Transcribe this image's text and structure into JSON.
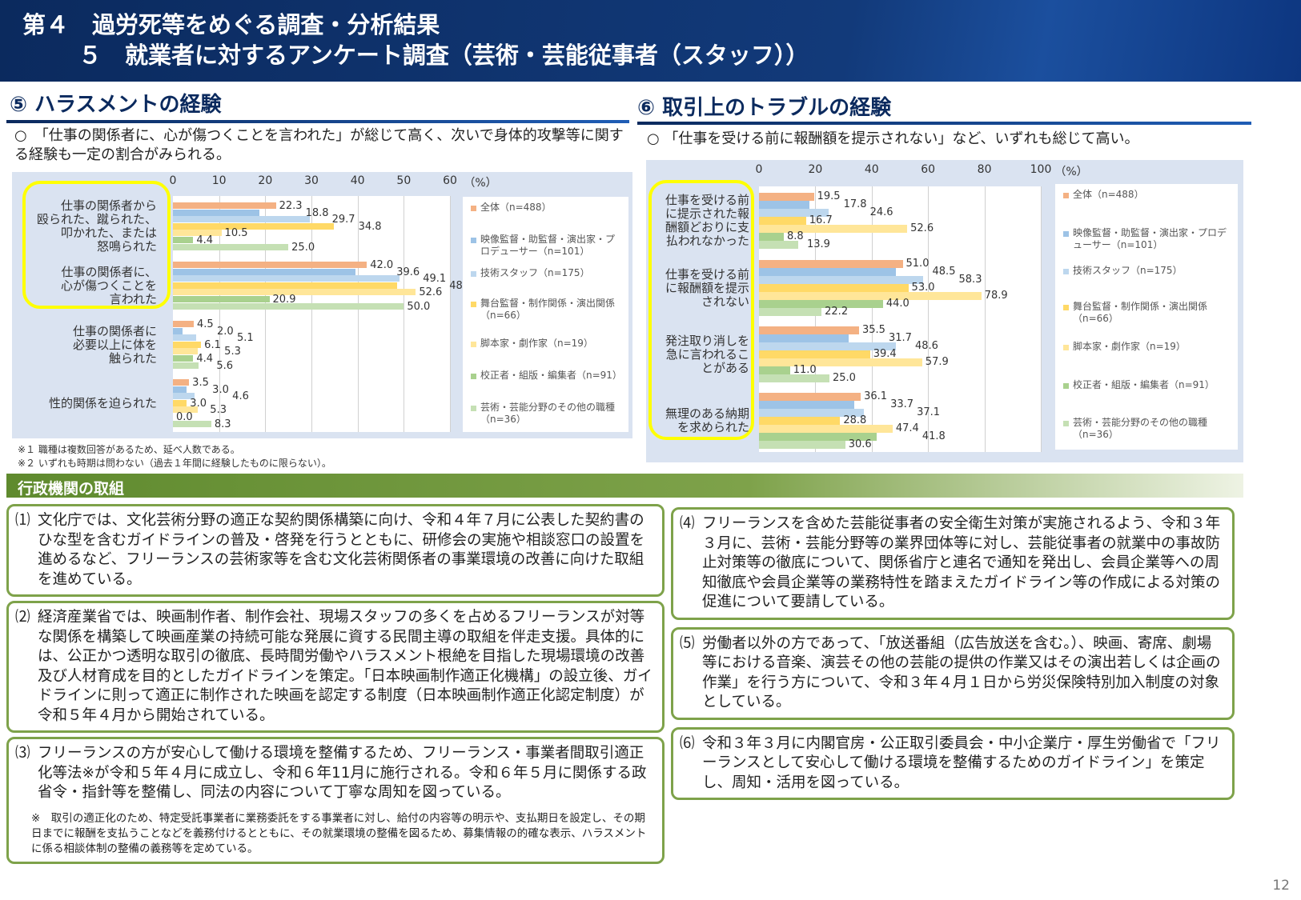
{
  "header": {
    "line1": "第４　過労死等をめぐる調査・分析結果",
    "line2": "５　就業者に対するアンケート調査（芸術・芸能従事者（スタッフ））"
  },
  "left": {
    "title": "⑤ ハラスメントの経験",
    "lead": "○　「仕事の関係者に、心が傷つくことを言われた」が総じて高く、次いで身体的攻撃等に関する経験も一定の割合がみられる。",
    "notes": [
      "※１ 職種は複数回答があるため、延べ人数である。",
      "※２ いずれも時期は問わない（過去１年間に経験したものに限らない）。"
    ]
  },
  "right": {
    "title": "⑥ 取引上のトラブルの経験",
    "lead": "○ 「仕事を受ける前に報酬額を提示されない」など、いずれも総じて高い。"
  },
  "colors": [
    "#F4B183",
    "#9DC3E6",
    "#BDD7EE",
    "#FFD966",
    "#FFE699",
    "#A9D18E",
    "#C5E0B4"
  ],
  "chart_data": [
    {
      "type": "bar",
      "orientation": "horizontal",
      "unit": "（%）",
      "xlim": [
        0,
        60
      ],
      "ticks": [
        0,
        10,
        20,
        30,
        40,
        50,
        60
      ],
      "grid": true,
      "legend": "right",
      "categories": [
        "仕事の関係者から殴られた、蹴られた、叩かれた、または怒鳴られた",
        "仕事の関係者に、心が傷つくことを言われた",
        "仕事の関係者に必要以上に体を触られた",
        "性的関係を迫られた"
      ],
      "cat_lines": [
        [
          "仕事の関係者から",
          "殴られた、蹴られた、",
          "叩かれた、または",
          "怒鳴られた"
        ],
        [
          "仕事の関係者に、",
          "心が傷つくことを",
          "言われた"
        ],
        [
          "仕事の関係者に",
          "必要以上に体を",
          "触られた"
        ],
        [
          "性的関係を迫られた"
        ]
      ],
      "highlighted": [
        0,
        1
      ],
      "series": [
        {
          "name": "全体（n=488）",
          "values": [
            22.3,
            42.0,
            4.5,
            3.5
          ]
        },
        {
          "name": "映像監督・助監督・演出家・プロデューサー（n=101）",
          "values": [
            18.8,
            39.6,
            2.0,
            3.0
          ]
        },
        {
          "name": "技術スタッフ（n=175）",
          "values": [
            29.7,
            49.1,
            5.1,
            4.6
          ]
        },
        {
          "name": "舞台監督・制作関係・演出関係（n=66）",
          "values": [
            34.8,
            48.5,
            6.1,
            3.0
          ]
        },
        {
          "name": "脚本家・劇作家（n=19）",
          "values": [
            10.5,
            52.6,
            5.3,
            5.3
          ]
        },
        {
          "name": "校正者・組版・編集者（n=91）",
          "values": [
            4.4,
            20.9,
            4.4,
            0.0
          ]
        },
        {
          "name": "芸術・芸能分野のその他の職種（n=36）",
          "values": [
            25.0,
            50.0,
            5.6,
            8.3
          ]
        }
      ]
    },
    {
      "type": "bar",
      "orientation": "horizontal",
      "unit": "（%）",
      "xlim": [
        0,
        100
      ],
      "ticks": [
        0,
        20,
        40,
        60,
        80,
        100
      ],
      "grid": true,
      "legend": "right",
      "categories": [
        "仕事を受ける前に提示された報酬額どおりに支払われなかった",
        "仕事を受ける前に報酬額を提示されない",
        "発注取り消しを急に言われることがある",
        "無理のある納期を求められた"
      ],
      "cat_lines": [
        [
          "仕事を受ける前",
          "に提示された報",
          "酬額どおりに支",
          "払われなかった"
        ],
        [
          "仕事を受ける前",
          "に報酬額を提示",
          "されない"
        ],
        [
          "発注取り消しを",
          "急に言われるこ",
          "とがある"
        ],
        [
          "無理のある納期",
          "を求められた"
        ]
      ],
      "highlighted": [
        0,
        1,
        2,
        3
      ],
      "series": [
        {
          "name": "全体（n=488）",
          "values": [
            19.5,
            51.0,
            35.5,
            36.1
          ]
        },
        {
          "name": "映像監督・助監督・演出家・プロデューサー（n=101）",
          "values": [
            17.8,
            48.5,
            31.7,
            33.7
          ]
        },
        {
          "name": "技術スタッフ（n=175）",
          "values": [
            24.6,
            58.3,
            48.6,
            37.1
          ]
        },
        {
          "name": "舞台監督・制作関係・演出関係（n=66）",
          "values": [
            16.7,
            53.0,
            39.4,
            28.8
          ]
        },
        {
          "name": "脚本家・劇作家（n=19）",
          "values": [
            52.6,
            78.9,
            57.9,
            47.4
          ]
        },
        {
          "name": "校正者・組版・編集者（n=91）",
          "values": [
            8.8,
            44.0,
            11.0,
            41.8
          ]
        },
        {
          "name": "芸術・芸能分野のその他の職種（n=36）",
          "values": [
            13.9,
            22.2,
            25.0,
            30.6
          ]
        }
      ]
    }
  ],
  "admin": {
    "title": "行政機関の取組",
    "items": [
      {
        "num": "⑴",
        "text": "文化庁では、文化芸術分野の適正な契約関係構築に向け、令和４年７月に公表した契約書のひな型を含むガイドラインの普及・啓発を行うとともに、研修会の実施や相談窓口の設置を進めるなど、フリーランスの芸術家等を含む文化芸術関係者の事業環境の改善に向けた取組を進めている。"
      },
      {
        "num": "⑵",
        "text": "経済産業省では、映画制作者、制作会社、現場スタッフの多くを占めるフリーランスが対等な関係を構築して映画産業の持続可能な発展に資する民間主導の取組を伴走支援。具体的には、公正かつ透明な取引の徹底、長時間労働やハラスメント根絶を目指した現場環境の改善及び人材育成を目的としたガイドラインを策定。「日本映画制作適正化機構」の設立後、ガイドラインに則って適正に制作された映画を認定する制度（日本映画制作適正化認定制度）が令和５年４月から開始されている。"
      },
      {
        "num": "⑶",
        "text": "フリーランスの方が安心して働ける環境を整備するため、フリーランス・事業者間取引適正化等法※が令和５年４月に成立し、令和６年11月に施行される。令和６年５月に関係する政省令・指針等を整備し、同法の内容について丁寧な周知を図っている。",
        "note": "※　取引の適正化のため、特定受託事業者に業務委託をする事業者に対し、給付の内容等の明示や、支払期日を設定し、その期日までに報酬を支払うことなどを義務付けるとともに、その就業環境の整備を図るため、募集情報の的確な表示、ハラスメントに係る相談体制の整備の義務等を定めている。"
      },
      {
        "num": "⑷",
        "text": "フリーランスを含めた芸能従事者の安全衛生対策が実施されるよう、令和３年３月に、芸術・芸能分野等の業界団体等に対し、芸能従事者の就業中の事故防止対策等の徹底について、関係省庁と連名で通知を発出し、会員企業等への周知徹底や会員企業等の業務特性を踏まえたガイドライン等の作成による対策の促進について要請している。"
      },
      {
        "num": "⑸",
        "text": "労働者以外の方であって、「放送番組（広告放送を含む。）、映画、寄席、劇場等における音楽、演芸その他の芸能の提供の作業又はその演出若しくは企画の作業」を行う方について、令和３年４月１日から労災保険特別加入制度の対象としている。"
      },
      {
        "num": "⑹",
        "text": "令和３年３月に内閣官房・公正取引委員会・中小企業庁・厚生労働省で「フリーランスとして安心して働ける環境を整備するためのガイドライン」を策定し、周知・活用を図っている。"
      }
    ]
  },
  "page_number": "12"
}
